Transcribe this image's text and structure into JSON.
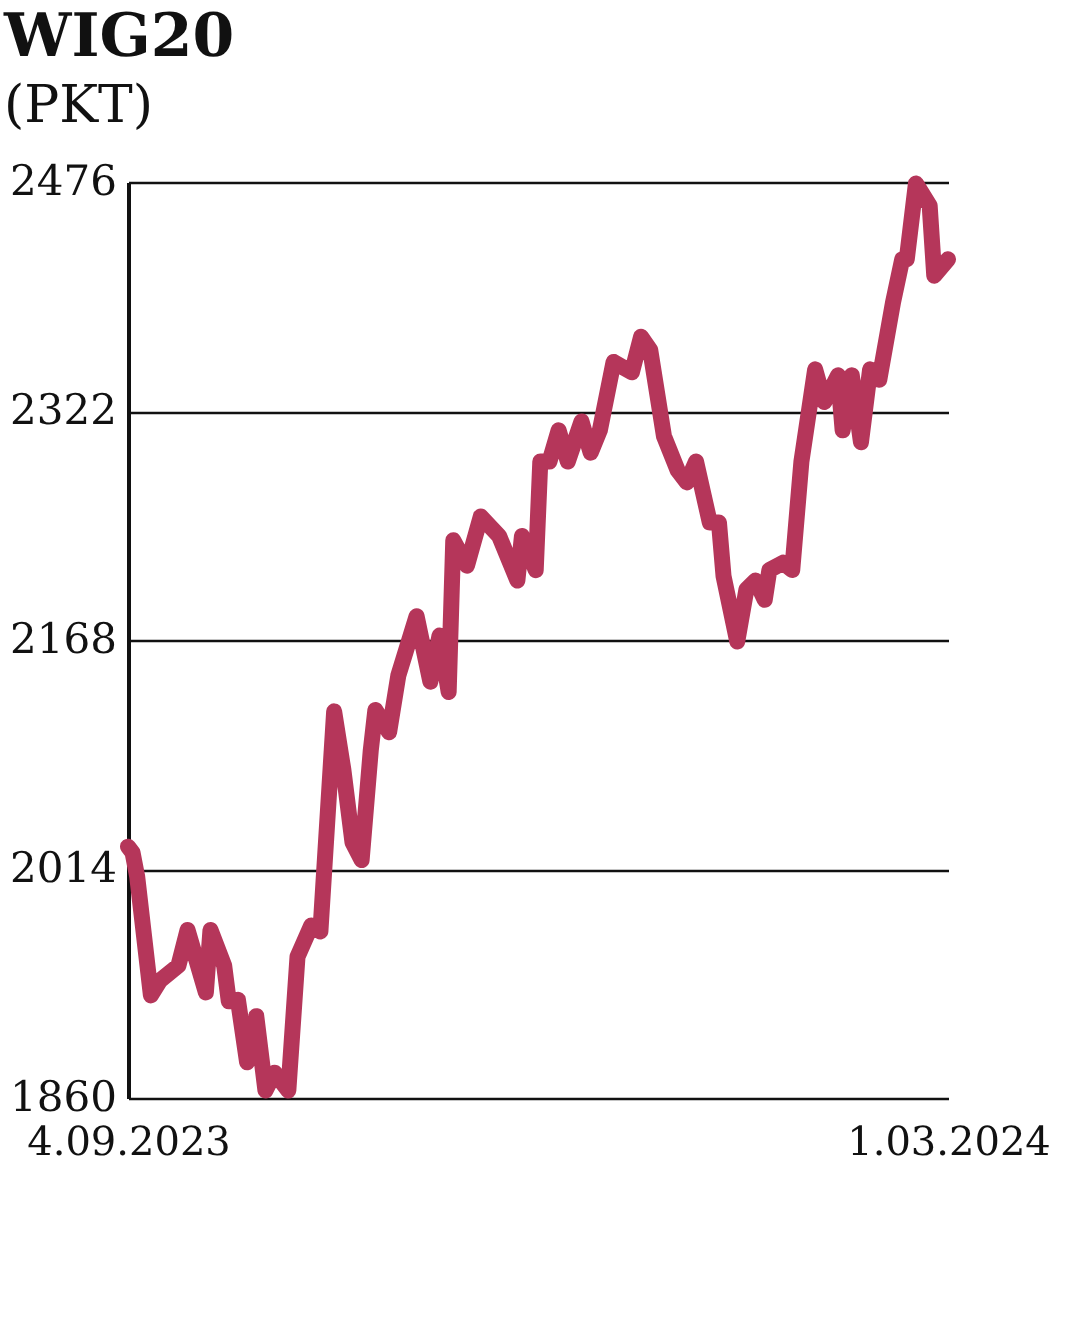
{
  "chart_data": {
    "type": "line",
    "title": "WIG20",
    "subtitle": "(PKT)",
    "x": [
      "2023-09-04",
      "2023-09-05",
      "2023-09-06",
      "2023-09-09",
      "2023-09-11",
      "2023-09-15",
      "2023-09-17",
      "2023-09-21",
      "2023-09-22",
      "2023-09-25",
      "2023-09-26",
      "2023-09-28",
      "2023-09-30",
      "2023-10-02",
      "2023-10-04",
      "2023-10-06",
      "2023-10-09",
      "2023-10-11",
      "2023-10-14",
      "2023-10-16",
      "2023-10-19",
      "2023-10-21",
      "2023-10-23",
      "2023-10-25",
      "2023-10-27",
      "2023-10-28",
      "2023-10-31",
      "2023-11-02",
      "2023-11-06",
      "2023-11-09",
      "2023-11-11",
      "2023-11-13",
      "2023-11-14",
      "2023-11-17",
      "2023-11-20",
      "2023-11-24",
      "2023-11-28",
      "2023-11-29",
      "2023-12-02",
      "2023-12-03",
      "2023-12-05",
      "2023-12-07",
      "2023-12-09",
      "2023-12-12",
      "2023-12-14",
      "2023-12-16",
      "2023-12-19",
      "2023-12-23",
      "2023-12-25",
      "2023-12-27",
      "2023-12-30",
      "2024-01-02",
      "2024-01-04",
      "2024-01-06",
      "2024-01-09",
      "2024-01-11",
      "2024-01-12",
      "2024-01-15",
      "2024-01-17",
      "2024-01-19",
      "2024-01-21",
      "2024-01-22",
      "2024-01-25",
      "2024-01-27",
      "2024-01-29",
      "2024-02-01",
      "2024-02-03",
      "2024-02-06",
      "2024-02-07",
      "2024-02-09",
      "2024-02-11",
      "2024-02-13",
      "2024-02-15",
      "2024-02-18",
      "2024-02-20",
      "2024-02-21",
      "2024-02-23",
      "2024-02-26",
      "2024-02-27",
      "2024-03-01"
    ],
    "series": [
      {
        "color": "#b5365a",
        "values": [
          2029,
          2025,
          2009,
          1929,
          1939,
          1949,
          1973,
          1931,
          1973,
          1949,
          1925,
          1926,
          1884,
          1915,
          1865,
          1877,
          1865,
          1955,
          1976,
          1972,
          2120,
          2081,
          2032,
          2020,
          2094,
          2121,
          2106,
          2144,
          2184,
          2140,
          2171,
          2133,
          2235,
          2218,
          2251,
          2238,
          2208,
          2238,
          2215,
          2288,
          2288,
          2309,
          2288,
          2315,
          2294,
          2309,
          2355,
          2348,
          2372,
          2363,
          2305,
          2282,
          2274,
          2288,
          2247,
          2247,
          2211,
          2167,
          2202,
          2208,
          2195,
          2215,
          2220,
          2215,
          2288,
          2350,
          2328,
          2346,
          2309,
          2346,
          2301,
          2350,
          2343,
          2395,
          2424,
          2424,
          2475,
          2460,
          2413,
          2424
        ]
      }
    ],
    "xlim": [
      "2023-09-04",
      "2024-03-01"
    ],
    "xticks": [
      {
        "value": "2023-09-04",
        "label": "4.09.2023"
      },
      {
        "value": "2024-03-01",
        "label": "1.03.2024"
      }
    ],
    "ylim": [
      1860,
      2476
    ],
    "yticks": [
      1860,
      2014,
      2168,
      2322,
      2476
    ],
    "grid": "y",
    "marker": "none",
    "line_style": "solid"
  }
}
